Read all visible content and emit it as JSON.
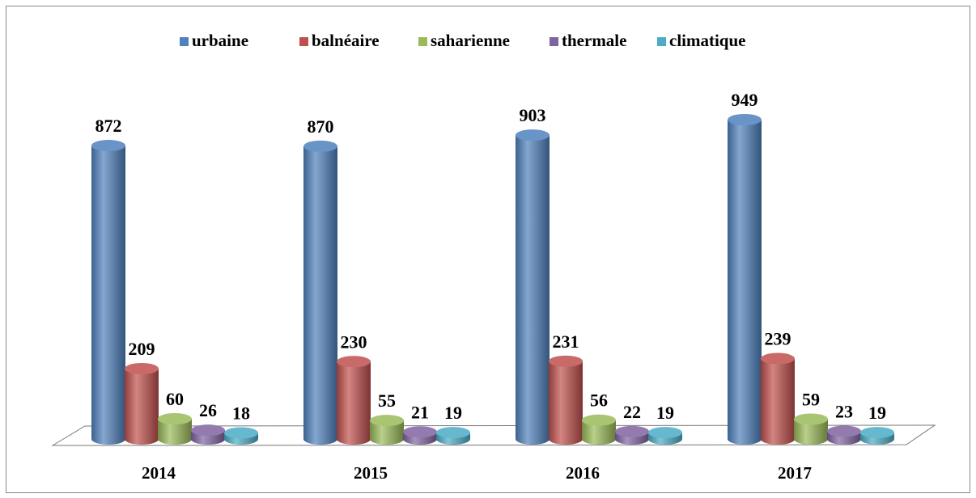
{
  "chart_data": {
    "type": "bar3d",
    "categories": [
      "2014",
      "2015",
      "2016",
      "2017"
    ],
    "series": [
      {
        "name": "urbaine",
        "color": "#4f81bd",
        "values": [
          872,
          870,
          903,
          949
        ]
      },
      {
        "name": "balnéaire",
        "color": "#c0504d",
        "values": [
          209,
          230,
          231,
          239
        ]
      },
      {
        "name": "saharienne",
        "color": "#9bbb59",
        "values": [
          60,
          55,
          56,
          59
        ]
      },
      {
        "name": "thermale",
        "color": "#8064a2",
        "values": [
          26,
          21,
          22,
          23
        ]
      },
      {
        "name": "climatique",
        "color": "#4bacc6",
        "values": [
          18,
          19,
          19,
          19
        ]
      }
    ],
    "legend": "top"
  }
}
